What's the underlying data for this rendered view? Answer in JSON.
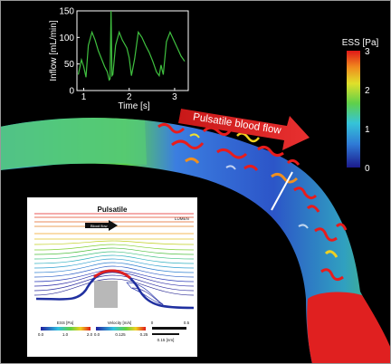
{
  "inflow_chart": {
    "ylabel": "Inflow [mL/min]",
    "xlabel": "Time [s]",
    "yticks": [
      "0",
      "50",
      "100",
      "150"
    ],
    "xticks": [
      "1",
      "2",
      "3"
    ]
  },
  "colorbar": {
    "title": "ESS [Pa]",
    "ticks": [
      "3",
      "2",
      "1",
      "0"
    ]
  },
  "flow_arrow": {
    "label": "Pulsatile blood flow"
  },
  "inset": {
    "title": "Pulsatile",
    "lumen_label": "LUMEN",
    "flow_label": "Blood flow",
    "legend_ess": {
      "title": "ESS [Pa]",
      "ticks": [
        "0.0",
        "1.0",
        "2.0"
      ]
    },
    "legend_velocity": {
      "title": "Velocity [m/s]",
      "ticks": [
        "0.0",
        "0.125",
        "0.25"
      ]
    },
    "scale": {
      "ticks": [
        "0",
        "0.5"
      ],
      "bar_label": "0.15 [nm]"
    }
  },
  "chart_data": {
    "type": "line",
    "xlabel": "Time [s]",
    "ylabel": "Inflow [mL/min]",
    "xlim": [
      0.85,
      3.3
    ],
    "ylim": [
      0,
      150
    ],
    "x": [
      0.88,
      0.95,
      1.0,
      1.05,
      1.1,
      1.18,
      1.25,
      1.32,
      1.4,
      1.46,
      1.52,
      1.56,
      1.58,
      1.6,
      1.62,
      1.64,
      1.7,
      1.78,
      1.85,
      1.95,
      2.0,
      2.05,
      2.12,
      2.2,
      2.28,
      2.36,
      2.44,
      2.52,
      2.6,
      2.66,
      2.7,
      2.75,
      2.82,
      2.9,
      2.98,
      3.06,
      3.14,
      3.22
    ],
    "values": [
      30,
      58,
      45,
      25,
      85,
      110,
      95,
      75,
      58,
      45,
      35,
      20,
      22,
      150,
      28,
      30,
      85,
      110,
      95,
      80,
      62,
      28,
      60,
      110,
      100,
      85,
      72,
      55,
      35,
      28,
      48,
      30,
      92,
      110,
      95,
      80,
      65,
      55
    ]
  }
}
